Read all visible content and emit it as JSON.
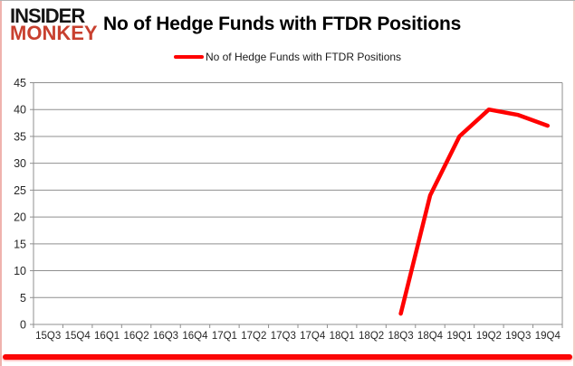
{
  "logo": {
    "line1": "INSIDER",
    "line2": "MONKEY"
  },
  "header": {
    "title": "No of Hedge Funds with FTDR Positions"
  },
  "legend": {
    "label": "No of Hedge Funds with FTDR Positions",
    "line_color": "#ff0000"
  },
  "colors": {
    "series_red": "#ff0000",
    "logo_black": "#141414",
    "logo_red": "#c8402f",
    "grid_gray": "#8f8f8f",
    "axis_text": "#262626",
    "bottom_accent_red": "#fb0606",
    "side_border_pink": "#efb3ae"
  },
  "chart_data": {
    "type": "line",
    "title": "No of Hedge Funds with FTDR Positions",
    "categories": [
      "15Q3",
      "15Q4",
      "16Q1",
      "16Q2",
      "16Q3",
      "16Q4",
      "17Q1",
      "17Q2",
      "17Q3",
      "17Q4",
      "18Q1",
      "18Q2",
      "18Q3",
      "18Q4",
      "19Q1",
      "19Q2",
      "19Q3",
      "19Q4"
    ],
    "series": [
      {
        "name": "No of Hedge Funds with FTDR Positions",
        "color": "#ff0000",
        "values": [
          null,
          null,
          null,
          null,
          null,
          null,
          null,
          null,
          null,
          null,
          null,
          null,
          2,
          24,
          35,
          40,
          39,
          37
        ]
      }
    ],
    "xlabel": "",
    "ylabel": "",
    "ylim": [
      0,
      45
    ],
    "ytick_step": 5,
    "grid": "horizontal",
    "legend_position": "top-center"
  }
}
